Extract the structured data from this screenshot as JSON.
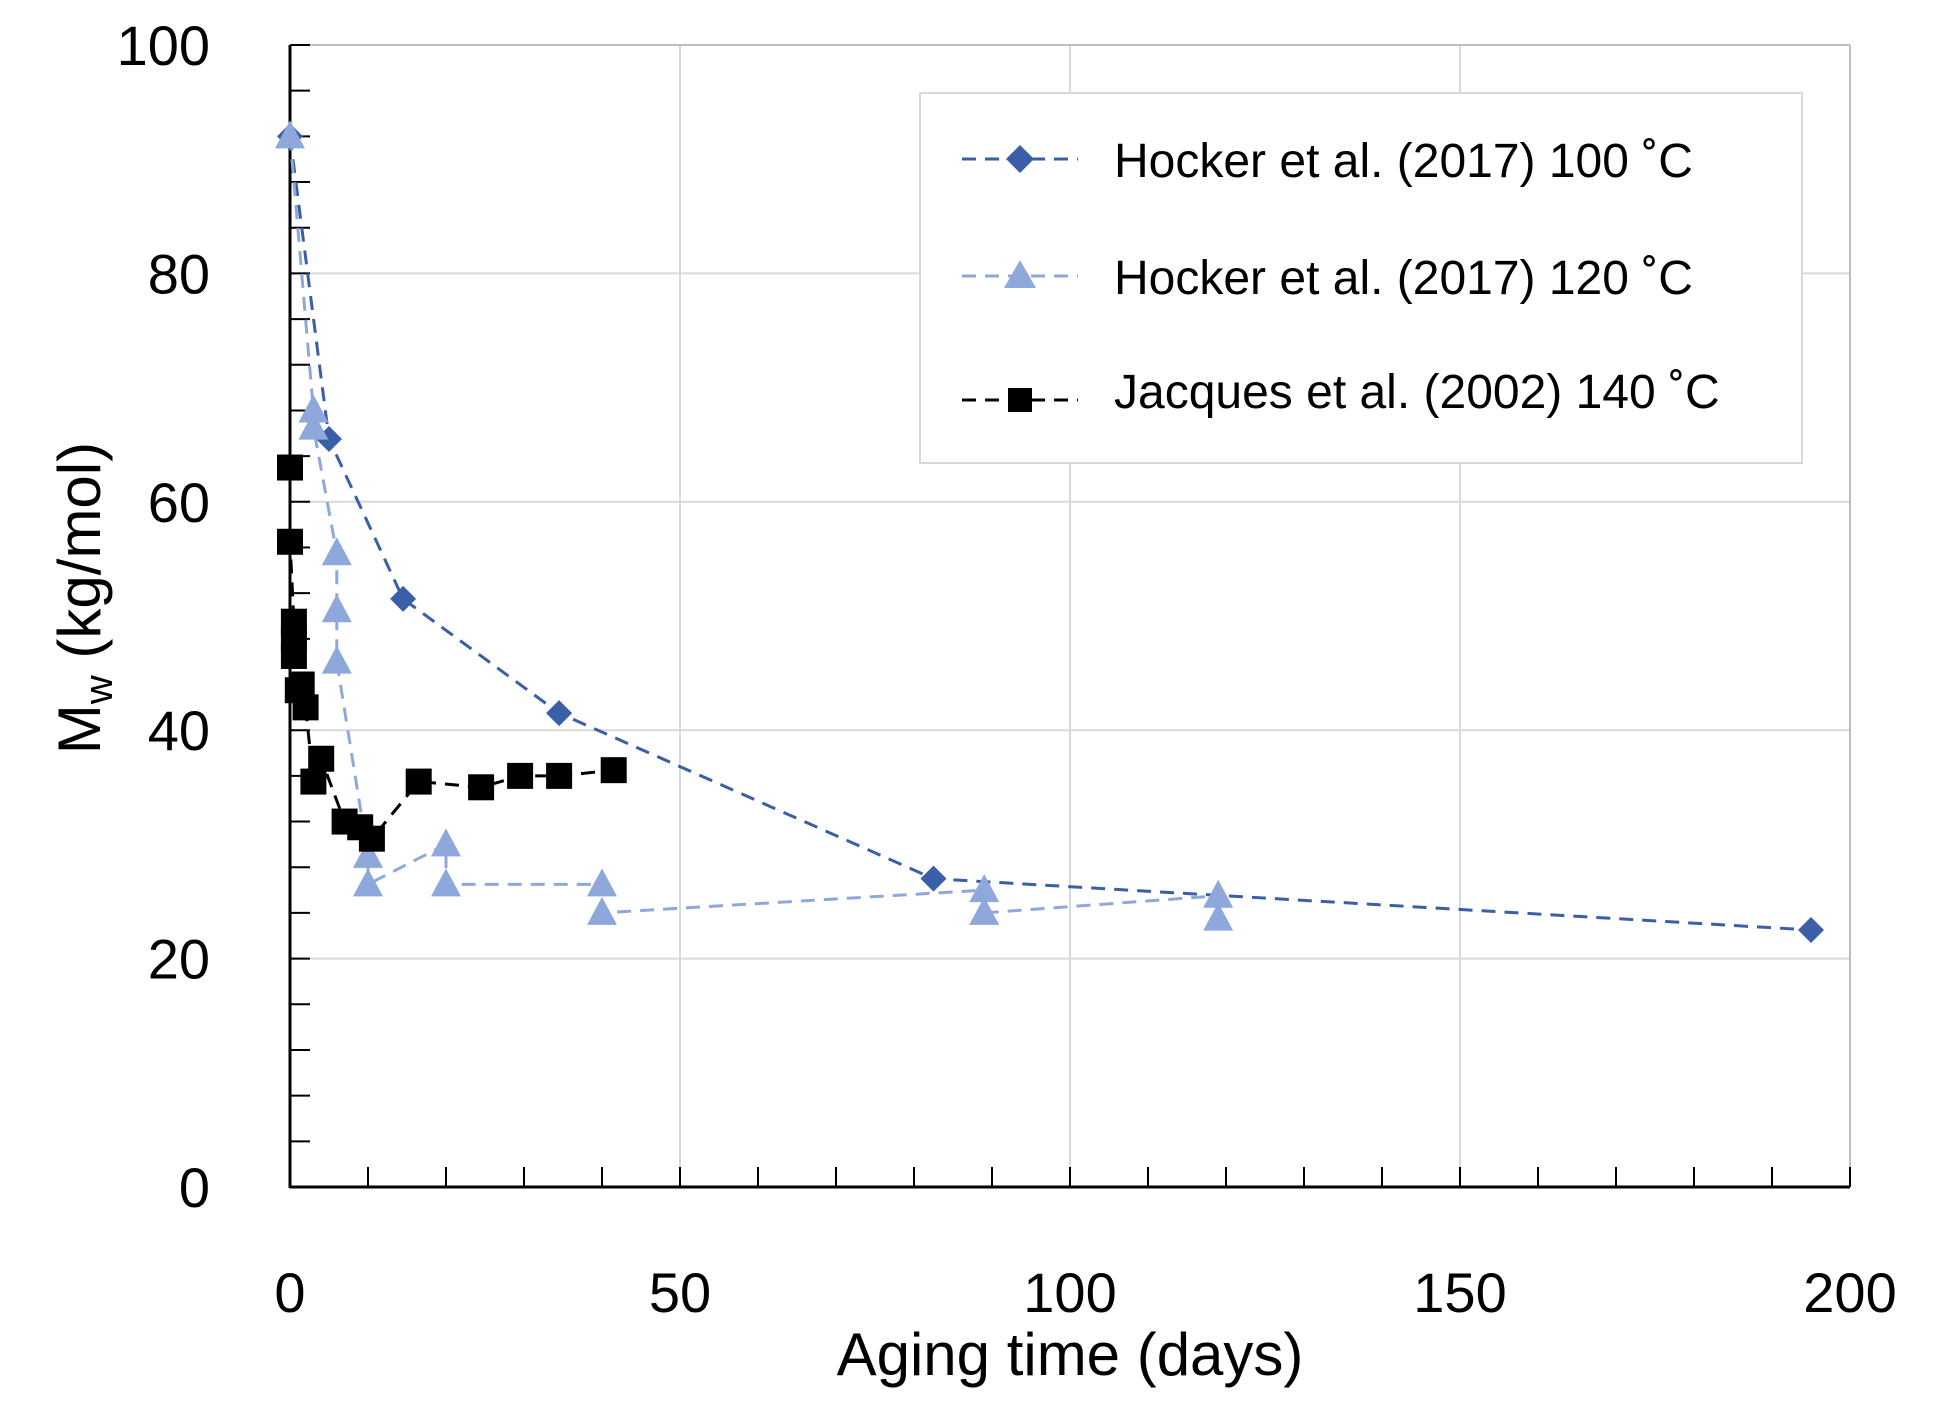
{
  "chart_data": {
    "type": "line",
    "title": "",
    "xlabel": "Aging time (days)",
    "ylabel_main": "M",
    "ylabel_sub": "w",
    "ylabel_rest": " (kg/mol)",
    "xlim": [
      0,
      200
    ],
    "ylim": [
      0,
      100
    ],
    "xticks": [
      0,
      50,
      100,
      150,
      200
    ],
    "yticks": [
      0,
      20,
      40,
      60,
      80,
      100
    ],
    "x_minor_step": 10,
    "y_minor_step": 4,
    "grid": true,
    "legend_position": "top-right",
    "series": [
      {
        "name": "Hocker et al. (2017) 100 ˚C",
        "color": "#3a5ea8",
        "marker": "diamond",
        "line": "dashed",
        "points": [
          [
            0,
            92
          ],
          [
            5,
            65.5
          ],
          [
            14.5,
            51.5
          ],
          [
            34.5,
            41.5
          ],
          [
            82.5,
            27
          ],
          [
            195,
            22.5
          ]
        ]
      },
      {
        "name": "Hocker et al. (2017) 120 ˚C",
        "color": "#8ea8dc",
        "marker": "triangle",
        "line": "dashed",
        "points": [
          [
            0,
            92
          ],
          [
            3,
            68
          ],
          [
            3,
            66.5
          ],
          [
            6,
            55.5
          ],
          [
            6,
            50.5
          ],
          [
            6,
            46
          ],
          [
            10,
            29
          ],
          [
            10,
            26.5
          ],
          [
            20,
            30
          ],
          [
            20,
            26.5
          ],
          [
            40,
            26.5
          ],
          [
            40,
            24
          ],
          [
            89,
            26
          ],
          [
            89,
            24
          ],
          [
            119,
            25.5
          ],
          [
            119,
            23.5
          ]
        ]
      },
      {
        "name": "Jacques et al. (2002) 140 ˚C",
        "color": "#000000",
        "marker": "square",
        "line": "dashed",
        "points": [
          [
            0,
            63
          ],
          [
            0,
            56.5
          ],
          [
            0.5,
            49.5
          ],
          [
            0.5,
            48
          ],
          [
            0.5,
            46.5
          ],
          [
            1,
            43.5
          ],
          [
            1.5,
            44
          ],
          [
            2,
            42
          ],
          [
            3,
            35.5
          ],
          [
            4,
            37.5
          ],
          [
            7,
            32
          ],
          [
            9,
            31.5
          ],
          [
            10.5,
            30.5
          ],
          [
            16.5,
            35.5
          ],
          [
            24.5,
            35
          ],
          [
            29.5,
            36
          ],
          [
            34.5,
            36
          ],
          [
            41.5,
            36.5
          ]
        ]
      }
    ]
  }
}
